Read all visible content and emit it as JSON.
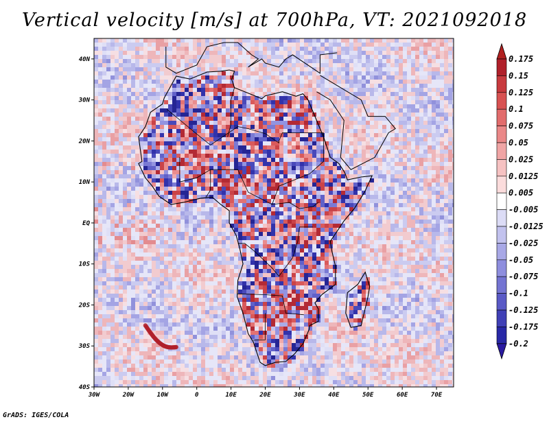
{
  "title": "Vertical velocity [m/s] at 700hPa, VT: 2021092018",
  "footer": "GrADS: IGES/COLA",
  "map": {
    "lon_labels": [
      "30W",
      "20W",
      "10W",
      "0",
      "10E",
      "20E",
      "30E",
      "40E",
      "50E",
      "60E",
      "70E"
    ],
    "lat_labels": [
      "40N",
      "30N",
      "20N",
      "10N",
      "EQ",
      "10S",
      "20S",
      "30S",
      "40S"
    ],
    "lon_range": [
      -30,
      75
    ],
    "lat_range": [
      -40,
      45
    ]
  },
  "colorbar": {
    "labels": [
      "0.175",
      "0.15",
      "0.125",
      "0.1",
      "0.075",
      "0.05",
      "0.025",
      "0.0125",
      "0.005",
      "-0.005",
      "-0.0125",
      "-0.025",
      "-0.05",
      "-0.075",
      "-0.1",
      "-0.125",
      "-0.175",
      "-0.2"
    ],
    "colors": [
      "#b0202a",
      "#c83a3e",
      "#d85252",
      "#e26c6c",
      "#ea8888",
      "#f0a5a5",
      "#f6c2c2",
      "#fbdcdc",
      "#ffffff",
      "#dcdcf6",
      "#c2c2ee",
      "#a8a8e6",
      "#8e8ede",
      "#7474d2",
      "#5a5ac6",
      "#4040b6",
      "#2828a6",
      "#1a1a8e"
    ],
    "min_arrow_color": "#2a1aa0",
    "max_arrow_color": "#b02020"
  },
  "field_colors": {
    "ocean_base": "#e6e6f8",
    "land_base": "#dcd6ef"
  }
}
